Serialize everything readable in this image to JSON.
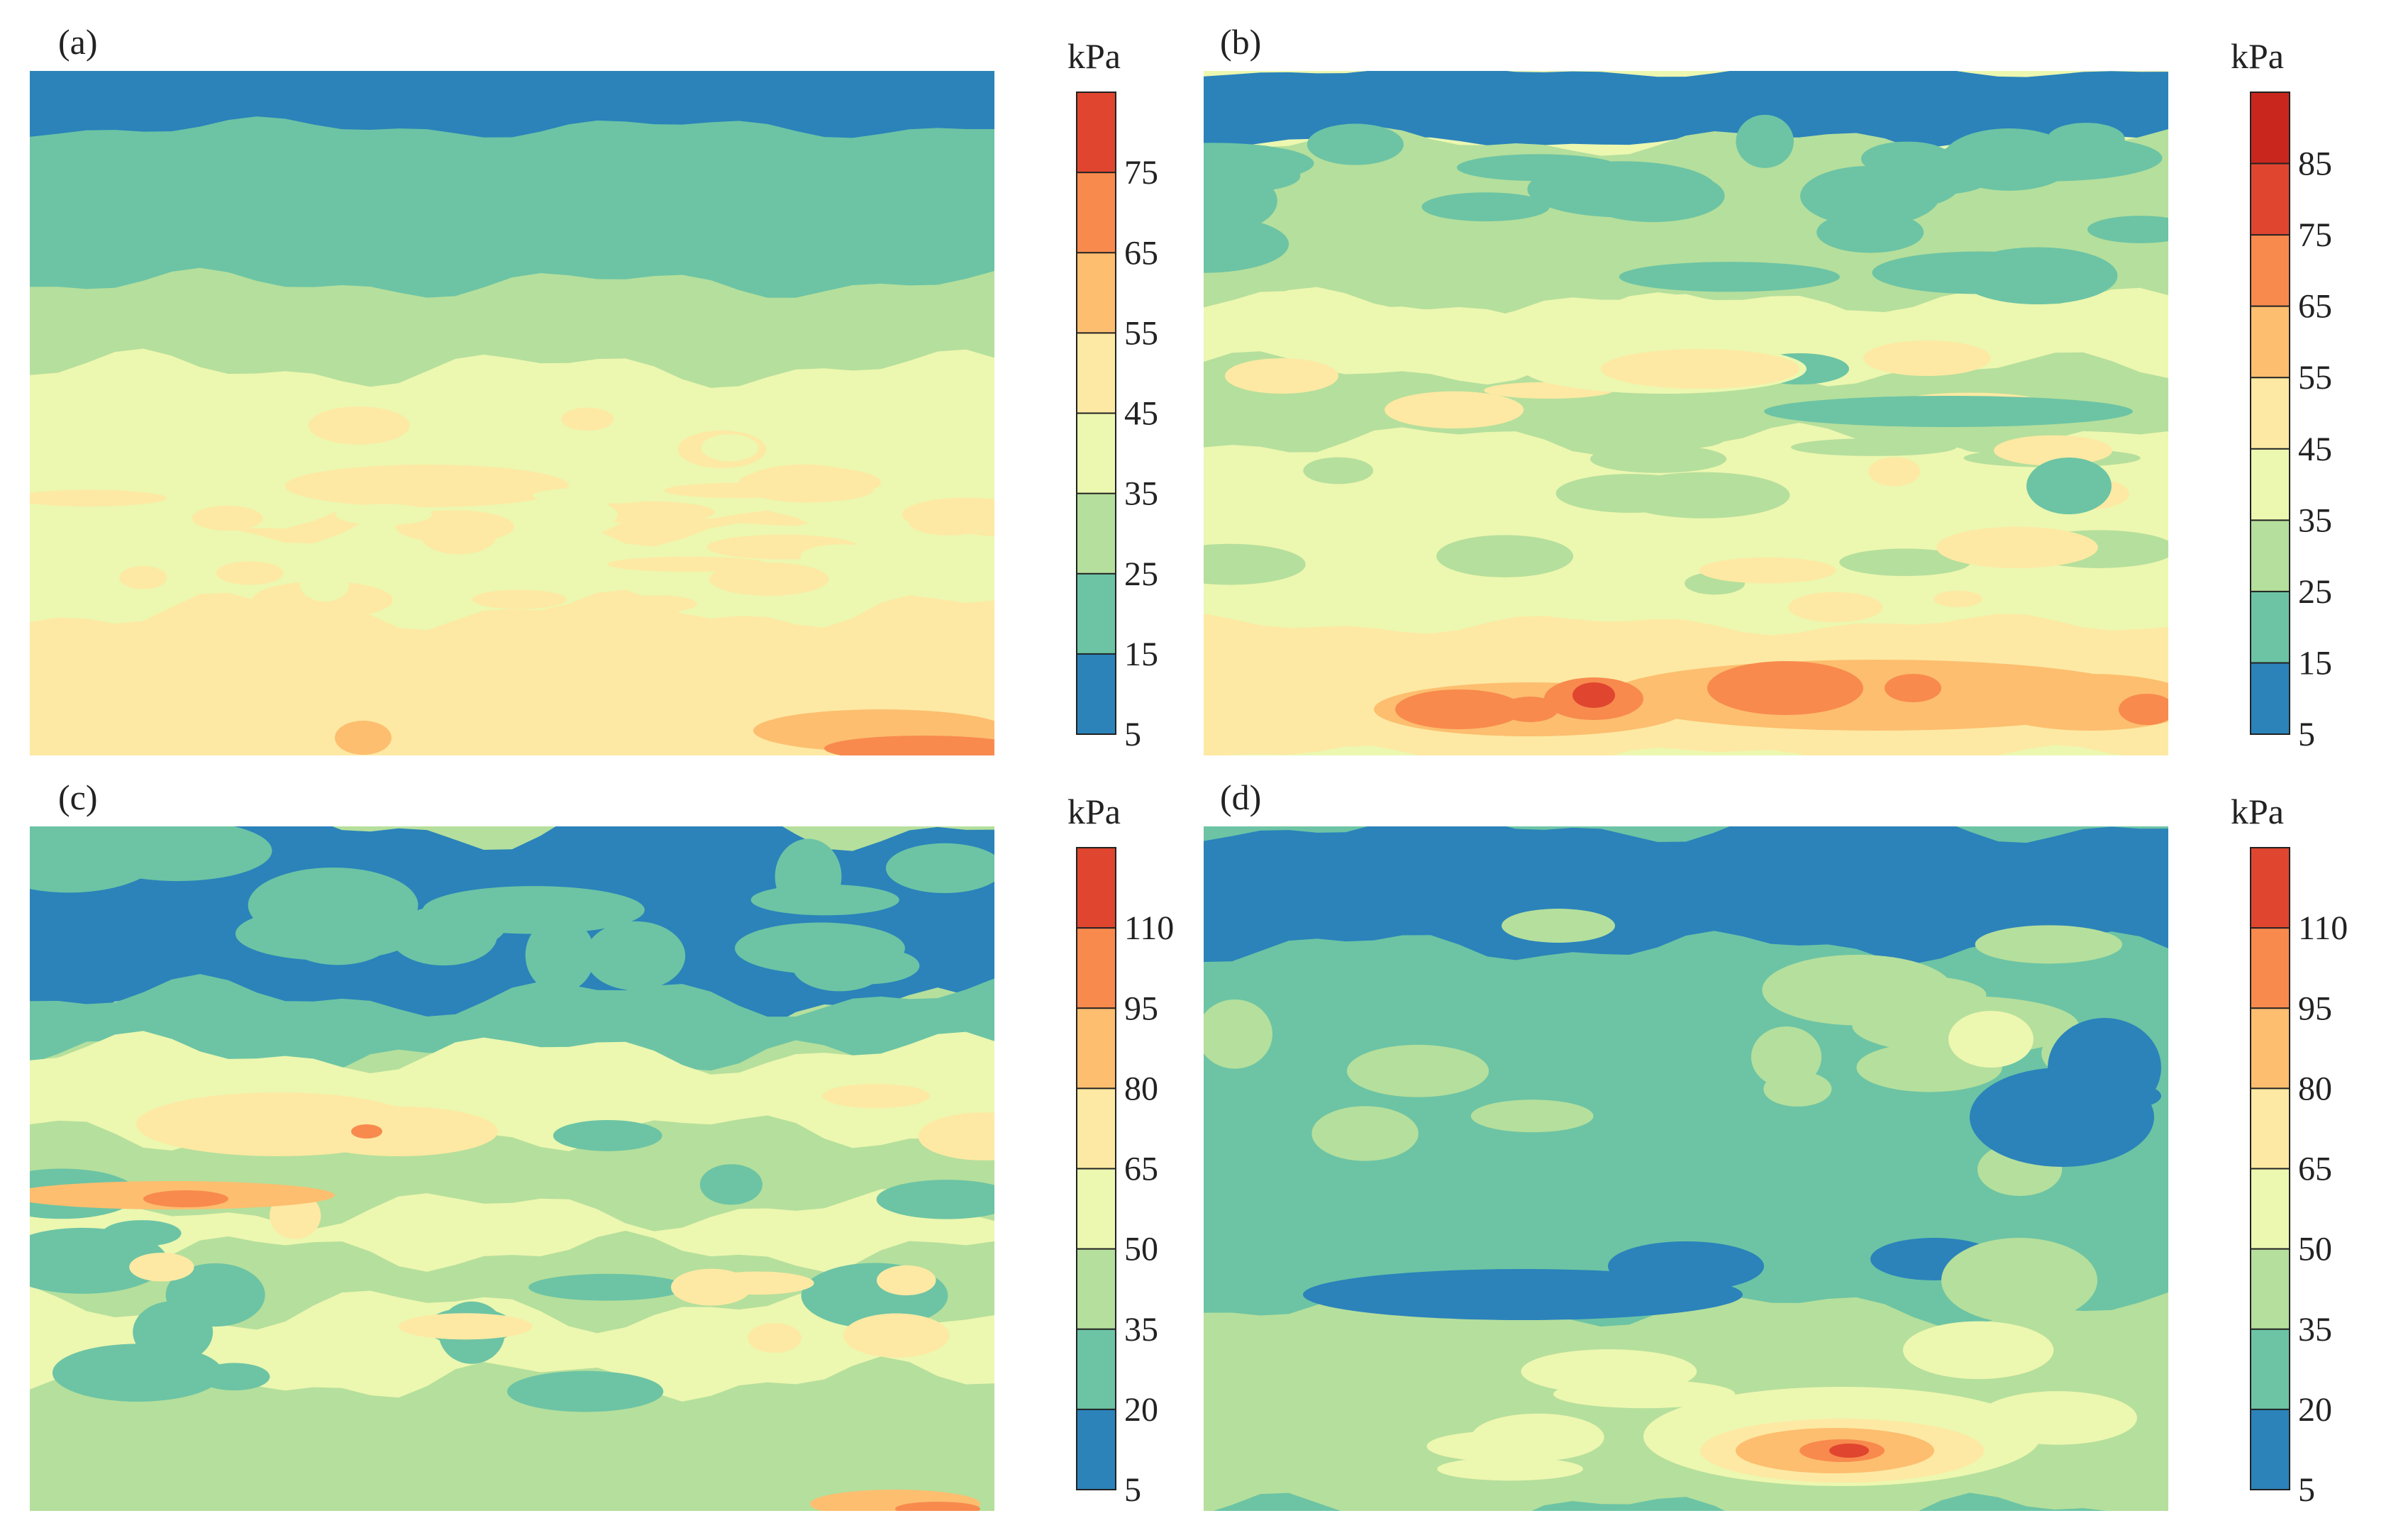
{
  "panels": [
    {
      "label": "(a)",
      "unit": "kPa",
      "ticks": [
        "5",
        "15",
        "25",
        "35",
        "45",
        "55",
        "65",
        "75"
      ],
      "levels": 8
    },
    {
      "label": "(b)",
      "unit": "kPa",
      "ticks": [
        "5",
        "15",
        "25",
        "35",
        "45",
        "55",
        "65",
        "75",
        "85"
      ],
      "levels": 9
    },
    {
      "label": "(c)",
      "unit": "kPa",
      "ticks": [
        "5",
        "20",
        "35",
        "50",
        "65",
        "80",
        "95",
        "110"
      ],
      "levels": 8
    },
    {
      "label": "(d)",
      "unit": "kPa",
      "ticks": [
        "5",
        "20",
        "35",
        "50",
        "65",
        "80",
        "95",
        "110"
      ],
      "levels": 8
    }
  ],
  "palette": [
    "#2b83ba",
    "#6cc4a4",
    "#b5df9c",
    "#ecf7b0",
    "#fde9a3",
    "#fdbe6f",
    "#f88a4e",
    "#e0452f",
    "#c9271e"
  ],
  "chart_data": [
    {
      "type": "heatmap",
      "panel": "(a)",
      "colorbar_ticks": [
        5,
        15,
        25,
        35,
        45,
        55,
        65,
        75
      ],
      "colorbar_unit": "kPa",
      "value_range": [
        5,
        85
      ],
      "bands_top_to_bottom_kPa": [
        10,
        20,
        30,
        40,
        50,
        55
      ],
      "max_region": "bottom-right edge, about 65-75"
    },
    {
      "type": "heatmap",
      "panel": "(b)",
      "colorbar_ticks": [
        5,
        15,
        25,
        35,
        45,
        55,
        65,
        75,
        85
      ],
      "colorbar_unit": "kPa",
      "value_range": [
        5,
        95
      ],
      "bands_top_to_bottom_kPa": [
        10,
        25,
        20,
        40,
        30,
        40,
        60
      ],
      "max_region": "lower band, hot spots about 75-95"
    },
    {
      "type": "heatmap",
      "panel": "(c)",
      "colorbar_ticks": [
        5,
        20,
        35,
        50,
        65,
        80,
        95,
        110
      ],
      "colorbar_unit": "kPa",
      "value_range": [
        5,
        125
      ],
      "bands_top_to_bottom_kPa": [
        12,
        28,
        45,
        60,
        42,
        50,
        35
      ],
      "max_region": "left edge mid-height, about 80-95"
    },
    {
      "type": "heatmap",
      "panel": "(d)",
      "colorbar_ticks": [
        5,
        20,
        35,
        50,
        65,
        80,
        95,
        110
      ],
      "colorbar_unit": "kPa",
      "value_range": [
        5,
        125
      ],
      "bands_top_to_bottom_kPa": [
        12,
        28,
        25,
        15,
        40,
        55
      ],
      "max_region": "bottom-center, about 80-110"
    }
  ]
}
